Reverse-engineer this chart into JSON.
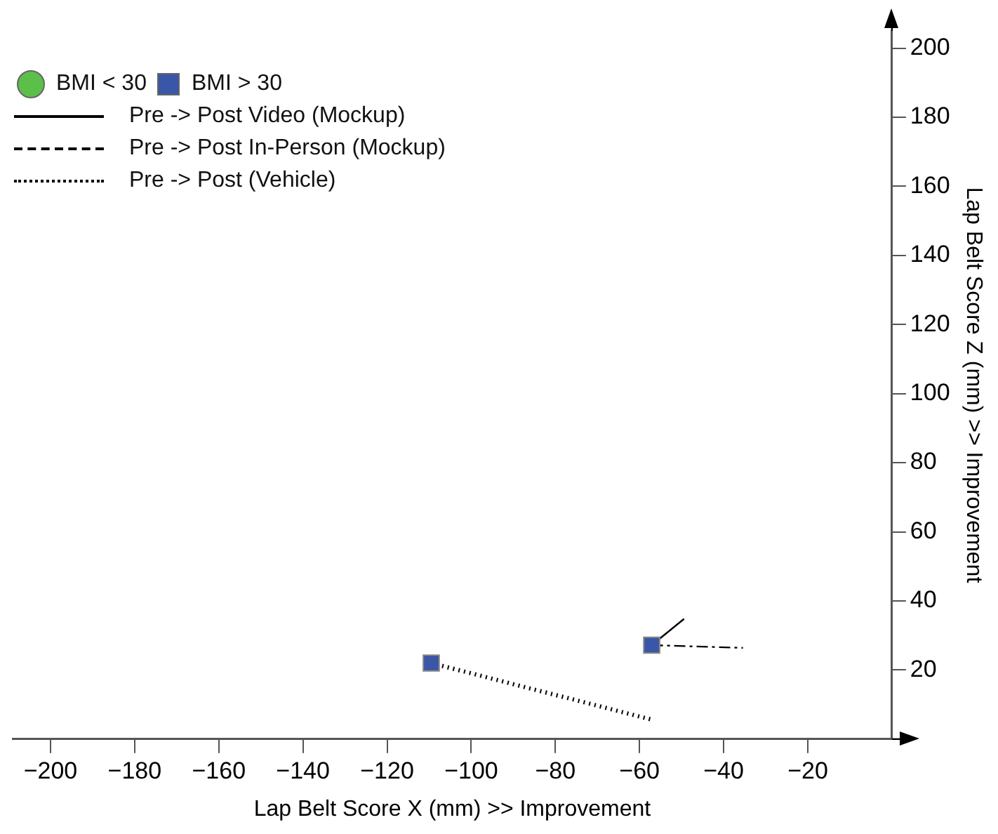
{
  "chart_data": {
    "type": "scatter",
    "xlabel": "Lap Belt Score X (mm) >> Improvement",
    "ylabel": "Lap Belt Score Z (mm) >> Improvement",
    "xlim": [
      -209,
      0
    ],
    "ylim": [
      0,
      205
    ],
    "xticks": [
      -200,
      -180,
      -160,
      -140,
      -120,
      -100,
      -80,
      -60,
      -40,
      -20
    ],
    "yticks": [
      20,
      40,
      60,
      80,
      100,
      120,
      140,
      160,
      180,
      200
    ],
    "grid": false,
    "legend": "top left",
    "series": [
      {
        "name": "BMI < 30",
        "marker": "circle",
        "color": "#5cbf4a"
      },
      {
        "name": "BMI > 30",
        "marker": "square",
        "color": "#3a56a6",
        "x": [
          -109.5,
          -57.1
        ],
        "values": [
          22,
          27.2
        ]
      },
      {
        "name": "Pre -> Post Video (Mockup)",
        "type": "line",
        "line_style": "solid",
        "marker": "none",
        "color": "#000000",
        "x": [
          -57.1,
          -49.4
        ],
        "values": [
          27.2,
          34.8
        ]
      },
      {
        "name": "Pre -> Post In-Person (Mockup)",
        "type": "line",
        "line_style": "dashed",
        "marker": "none",
        "color": "#000000",
        "x": [
          -57.1,
          -35.4
        ],
        "values": [
          27.2,
          26.4
        ]
      },
      {
        "name": "Pre -> Post (Vehicle)",
        "type": "line",
        "line_style": "dotted",
        "marker": "none",
        "color": "#000000",
        "x": [
          -109.5,
          -57
        ],
        "values": [
          22,
          5.6
        ]
      }
    ]
  }
}
